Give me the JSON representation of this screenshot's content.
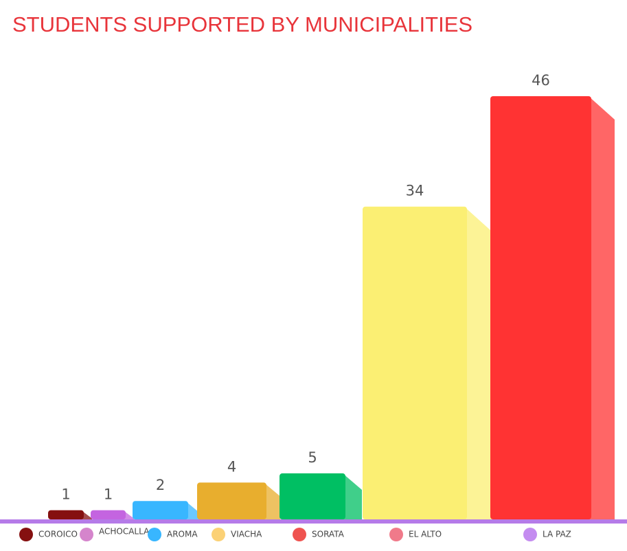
{
  "chart_data": {
    "type": "bar",
    "title": "STUDENTS SUPPORTED BY MUNICIPALITIES",
    "categories": [
      "COROICO",
      "ACHOCALLA",
      "AROMA",
      "VIACHA",
      "SORATA",
      "EL ALTO",
      "LA PAZ"
    ],
    "values": [
      1,
      1,
      2,
      4,
      5,
      34,
      46
    ],
    "colors": [
      "#851010",
      "#c464e0",
      "#38b6ff",
      "#e8ae2e",
      "#00bf63",
      "#fbef73",
      "#ff3333"
    ],
    "legend_colors": [
      "#851010",
      "#d585cc",
      "#38b6ff",
      "#fbd176",
      "#ef5350",
      "#f07a8a",
      "#c48cf0"
    ]
  }
}
